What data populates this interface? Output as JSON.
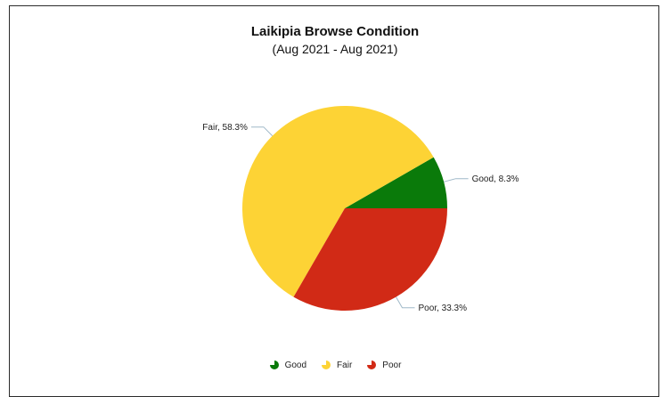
{
  "chart_data": {
    "type": "pie",
    "title": "Laikipia Browse Condition",
    "subtitle": "(Aug 2021 - Aug 2021)",
    "slices": [
      {
        "name": "Good",
        "value": 8.3,
        "label": "Good, 8.3%",
        "color": "#0a7a0a"
      },
      {
        "name": "Fair",
        "value": 58.3,
        "label": "Fair, 58.3%",
        "color": "#fdd335"
      },
      {
        "name": "Poor",
        "value": 33.3,
        "label": "Poor, 33.3%",
        "color": "#d12a16"
      }
    ],
    "legend": {
      "position": "bottom",
      "items": [
        "Good",
        "Fair",
        "Poor"
      ]
    }
  }
}
